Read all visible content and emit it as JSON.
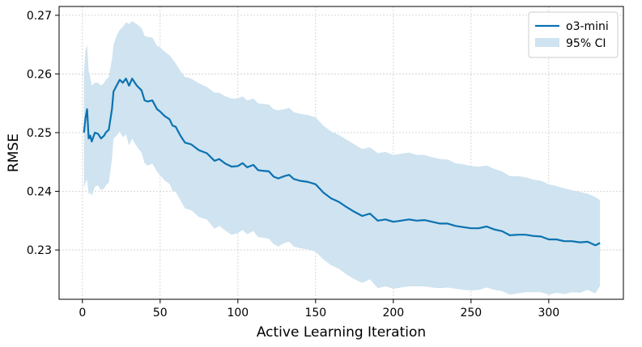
{
  "chart_data": {
    "type": "line",
    "title": "",
    "xlabel": "Active Learning Iteration",
    "ylabel": "RMSE",
    "xlim": [
      -15,
      348
    ],
    "ylim": [
      0.2216,
      0.2715
    ],
    "xticks": [
      0,
      50,
      100,
      150,
      200,
      250,
      300
    ],
    "yticks": [
      0.23,
      0.24,
      0.25,
      0.26,
      0.27
    ],
    "xtick_labels": [
      "0",
      "50",
      "100",
      "150",
      "200",
      "250",
      "300"
    ],
    "ytick_labels": [
      "0.23",
      "0.24",
      "0.25",
      "0.26",
      "0.27"
    ],
    "grid": true,
    "legend": {
      "position": "top-right",
      "entries": [
        "o3-mini",
        "95% CI"
      ]
    },
    "colors": {
      "line": "#0a72b0",
      "band": "#cfe3f0",
      "grid": "#cccccc"
    },
    "series": [
      {
        "name": "o3-mini",
        "x": [
          1,
          2,
          3,
          4,
          5,
          6,
          8,
          10,
          12,
          14,
          15,
          17,
          19,
          20,
          22,
          24,
          26,
          28,
          30,
          32,
          35,
          38,
          40,
          42,
          45,
          48,
          50,
          53,
          56,
          58,
          60,
          63,
          66,
          70,
          75,
          80,
          85,
          88,
          92,
          96,
          100,
          103,
          106,
          110,
          113,
          116,
          120,
          123,
          126,
          130,
          133,
          136,
          140,
          145,
          150,
          155,
          160,
          165,
          170,
          175,
          180,
          185,
          190,
          195,
          200,
          205,
          210,
          215,
          220,
          225,
          230,
          235,
          240,
          245,
          250,
          255,
          260,
          265,
          270,
          275,
          280,
          285,
          290,
          295,
          300,
          305,
          310,
          315,
          320,
          325,
          330,
          333
        ],
        "values": [
          0.25,
          0.2525,
          0.254,
          0.249,
          0.2495,
          0.2485,
          0.25,
          0.2498,
          0.249,
          0.2495,
          0.25,
          0.2505,
          0.254,
          0.257,
          0.258,
          0.259,
          0.2585,
          0.2592,
          0.258,
          0.2592,
          0.258,
          0.2572,
          0.2555,
          0.2553,
          0.2555,
          0.254,
          0.2536,
          0.2528,
          0.2523,
          0.2512,
          0.251,
          0.2495,
          0.2483,
          0.248,
          0.247,
          0.2465,
          0.2452,
          0.2455,
          0.2447,
          0.2442,
          0.2443,
          0.2448,
          0.2441,
          0.2445,
          0.2436,
          0.2435,
          0.2434,
          0.2425,
          0.2422,
          0.2426,
          0.2428,
          0.2421,
          0.2418,
          0.2416,
          0.2412,
          0.2398,
          0.2388,
          0.2382,
          0.2373,
          0.2365,
          0.2358,
          0.2362,
          0.235,
          0.2352,
          0.2348,
          0.235,
          0.2352,
          0.235,
          0.2351,
          0.2348,
          0.2345,
          0.2345,
          0.2341,
          0.2339,
          0.2337,
          0.2337,
          0.234,
          0.2335,
          0.2332,
          0.2325,
          0.2326,
          0.2326,
          0.2324,
          0.2323,
          0.2318,
          0.2318,
          0.2315,
          0.2315,
          0.2313,
          0.2314,
          0.2308,
          0.2312
        ]
      },
      {
        "name": "95% CI",
        "x": [
          1,
          2,
          3,
          4,
          5,
          6,
          8,
          10,
          12,
          14,
          15,
          17,
          19,
          20,
          22,
          24,
          26,
          28,
          30,
          32,
          35,
          38,
          40,
          42,
          45,
          48,
          50,
          53,
          56,
          58,
          60,
          63,
          66,
          70,
          75,
          80,
          85,
          88,
          92,
          96,
          100,
          103,
          106,
          110,
          113,
          116,
          120,
          123,
          126,
          130,
          133,
          136,
          140,
          145,
          150,
          155,
          160,
          165,
          170,
          175,
          180,
          185,
          190,
          195,
          200,
          205,
          210,
          215,
          220,
          225,
          230,
          235,
          240,
          245,
          250,
          255,
          260,
          265,
          270,
          275,
          280,
          285,
          290,
          295,
          300,
          305,
          310,
          315,
          320,
          325,
          330,
          333
        ],
        "upper": [
          0.26,
          0.264,
          0.265,
          0.2605,
          0.2595,
          0.258,
          0.2585,
          0.2585,
          0.258,
          0.2585,
          0.259,
          0.2595,
          0.2625,
          0.265,
          0.2665,
          0.2675,
          0.268,
          0.2688,
          0.2685,
          0.269,
          0.2685,
          0.2678,
          0.2665,
          0.2663,
          0.2662,
          0.2648,
          0.2645,
          0.2638,
          0.2632,
          0.2625,
          0.2618,
          0.2605,
          0.2595,
          0.2592,
          0.2584,
          0.2578,
          0.2568,
          0.2568,
          0.2562,
          0.2558,
          0.2558,
          0.2562,
          0.2555,
          0.2558,
          0.255,
          0.2549,
          0.2548,
          0.254,
          0.2538,
          0.254,
          0.2542,
          0.2535,
          0.2532,
          0.253,
          0.2526,
          0.2512,
          0.2502,
          0.2496,
          0.2488,
          0.248,
          0.2472,
          0.2475,
          0.2465,
          0.2467,
          0.2462,
          0.2464,
          0.2466,
          0.2462,
          0.2462,
          0.2458,
          0.2455,
          0.2454,
          0.2448,
          0.2446,
          0.2443,
          0.2442,
          0.2444,
          0.2438,
          0.2434,
          0.2426,
          0.2426,
          0.2424,
          0.242,
          0.2418,
          0.2412,
          0.2409,
          0.2405,
          0.2402,
          0.2399,
          0.2396,
          0.239,
          0.2385
        ],
        "lower": [
          0.2405,
          0.2415,
          0.242,
          0.2395,
          0.2398,
          0.2392,
          0.2408,
          0.241,
          0.2402,
          0.2405,
          0.241,
          0.2415,
          0.2455,
          0.249,
          0.2495,
          0.2502,
          0.2492,
          0.2497,
          0.2478,
          0.249,
          0.2476,
          0.2466,
          0.2448,
          0.2444,
          0.2447,
          0.2434,
          0.2427,
          0.2418,
          0.2413,
          0.2401,
          0.2399,
          0.2385,
          0.2371,
          0.2368,
          0.2356,
          0.2352,
          0.2336,
          0.2341,
          0.2333,
          0.2326,
          0.2329,
          0.2334,
          0.2327,
          0.2332,
          0.2322,
          0.2321,
          0.2319,
          0.231,
          0.2306,
          0.2312,
          0.2314,
          0.2306,
          0.2303,
          0.2301,
          0.2297,
          0.2284,
          0.2274,
          0.2268,
          0.2258,
          0.225,
          0.2244,
          0.225,
          0.2235,
          0.2238,
          0.2234,
          0.2236,
          0.2238,
          0.2238,
          0.2238,
          0.2236,
          0.2235,
          0.2236,
          0.2234,
          0.2232,
          0.2231,
          0.2232,
          0.2236,
          0.2232,
          0.223,
          0.2224,
          0.2226,
          0.2228,
          0.2228,
          0.2228,
          0.2224,
          0.2227,
          0.2225,
          0.2228,
          0.2227,
          0.2232,
          0.2226,
          0.2239
        ]
      }
    ]
  }
}
